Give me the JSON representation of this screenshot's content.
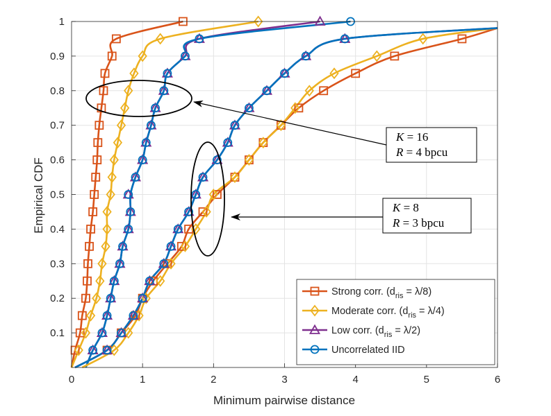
{
  "chart_data": {
    "type": "line",
    "title": "",
    "xlabel": "Minimum pairwise distance",
    "ylabel": "Empirical CDF",
    "xlim": [
      0,
      6
    ],
    "ylim": [
      0,
      1
    ],
    "x_ticks": [
      "0",
      "1",
      "2",
      "3",
      "4",
      "5",
      "6"
    ],
    "y_ticks": [
      "0.1",
      "0.2",
      "0.3",
      "0.4",
      "0.5",
      "0.6",
      "0.7",
      "0.8",
      "0.9",
      "1"
    ],
    "grid": true,
    "legend_position": "bottom-right",
    "series": [
      {
        "name": "Strong corr. (d_ris = λ/8)",
        "legend_label": {
          "prefix": "Strong corr. (d",
          "sub": "ris",
          "suffix": " = λ/8)"
        },
        "color": "#D95319",
        "marker": "square",
        "group": "K=16",
        "cdf_mean": 0.42,
        "cdf_std": 0.13,
        "marker_points": [
          [
            0.05,
            0.05
          ],
          [
            0.12,
            0.1
          ],
          [
            0.15,
            0.15
          ],
          [
            0.2,
            0.2
          ],
          [
            0.22,
            0.25
          ],
          [
            0.23,
            0.3
          ],
          [
            0.25,
            0.35
          ],
          [
            0.27,
            0.4
          ],
          [
            0.3,
            0.45
          ],
          [
            0.32,
            0.5
          ],
          [
            0.34,
            0.55
          ],
          [
            0.36,
            0.6
          ],
          [
            0.37,
            0.65
          ],
          [
            0.39,
            0.7
          ],
          [
            0.42,
            0.75
          ],
          [
            0.45,
            0.8
          ],
          [
            0.47,
            0.85
          ],
          [
            0.57,
            0.9
          ],
          [
            0.63,
            0.95
          ],
          [
            1.57,
            1.0
          ]
        ]
      },
      {
        "name": "Moderate corr. (d_ris = λ/4)",
        "legend_label": {
          "prefix": "Moderate corr. (d",
          "sub": "ris",
          "suffix": " = λ/4)"
        },
        "color": "#EDB120",
        "marker": "diamond",
        "group": "K=16",
        "cdf_mean": 0.63,
        "cdf_std": 0.2,
        "marker_points": [
          [
            0.1,
            0.05
          ],
          [
            0.2,
            0.1
          ],
          [
            0.27,
            0.15
          ],
          [
            0.35,
            0.2
          ],
          [
            0.4,
            0.25
          ],
          [
            0.43,
            0.3
          ],
          [
            0.48,
            0.35
          ],
          [
            0.5,
            0.4
          ],
          [
            0.5,
            0.45
          ],
          [
            0.55,
            0.5
          ],
          [
            0.57,
            0.55
          ],
          [
            0.6,
            0.6
          ],
          [
            0.65,
            0.65
          ],
          [
            0.7,
            0.7
          ],
          [
            0.75,
            0.75
          ],
          [
            0.8,
            0.8
          ],
          [
            0.88,
            0.85
          ],
          [
            1.0,
            0.9
          ],
          [
            1.25,
            0.95
          ],
          [
            2.63,
            1.0
          ]
        ]
      },
      {
        "name": "Low corr. (d_ris = λ/2)",
        "legend_label": {
          "prefix": "Low corr. (d",
          "sub": "ris",
          "suffix": " = λ/2)"
        },
        "color": "#7E2F8E",
        "marker": "triangle",
        "group": "K=16",
        "cdf_mean": 1.0,
        "cdf_std": 0.32,
        "marker_points": [
          [
            0.3,
            0.05
          ],
          [
            0.43,
            0.1
          ],
          [
            0.5,
            0.15
          ],
          [
            0.55,
            0.2
          ],
          [
            0.6,
            0.25
          ],
          [
            0.68,
            0.3
          ],
          [
            0.72,
            0.35
          ],
          [
            0.8,
            0.4
          ],
          [
            0.83,
            0.45
          ],
          [
            0.8,
            0.5
          ],
          [
            0.9,
            0.55
          ],
          [
            1.0,
            0.6
          ],
          [
            1.05,
            0.65
          ],
          [
            1.12,
            0.7
          ],
          [
            1.18,
            0.75
          ],
          [
            1.3,
            0.8
          ],
          [
            1.35,
            0.85
          ],
          [
            1.6,
            0.9
          ],
          [
            1.8,
            0.95
          ],
          [
            3.5,
            1.0
          ]
        ]
      },
      {
        "name": "Uncorrelated IID",
        "legend_label": {
          "prefix": "Uncorrelated IID",
          "sub": "",
          "suffix": ""
        },
        "color": "#0072BD",
        "marker": "circle",
        "group": "K=16",
        "cdf_mean": 1.0,
        "cdf_std": 0.32,
        "marker_points": [
          [
            0.3,
            0.05
          ],
          [
            0.43,
            0.1
          ],
          [
            0.5,
            0.15
          ],
          [
            0.55,
            0.2
          ],
          [
            0.6,
            0.25
          ],
          [
            0.68,
            0.3
          ],
          [
            0.72,
            0.35
          ],
          [
            0.8,
            0.4
          ],
          [
            0.83,
            0.45
          ],
          [
            0.8,
            0.5
          ],
          [
            0.9,
            0.55
          ],
          [
            1.0,
            0.6
          ],
          [
            1.05,
            0.65
          ],
          [
            1.12,
            0.7
          ],
          [
            1.18,
            0.75
          ],
          [
            1.3,
            0.8
          ],
          [
            1.35,
            0.85
          ],
          [
            1.6,
            0.9
          ],
          [
            1.8,
            0.95
          ],
          [
            3.93,
            1.0
          ]
        ]
      },
      {
        "name": "Strong corr. (d_ris = λ/8)",
        "color": "#D95319",
        "marker": "square",
        "group": "K=8",
        "cdf_mean": 2.6,
        "cdf_std": 1.2,
        "cdf_skew": "right",
        "x_max": 6,
        "marker_points": [
          [
            0.5,
            0.05
          ],
          [
            0.7,
            0.1
          ],
          [
            0.9,
            0.15
          ],
          [
            1.0,
            0.2
          ],
          [
            1.15,
            0.25
          ],
          [
            1.35,
            0.3
          ],
          [
            1.55,
            0.35
          ],
          [
            1.65,
            0.4
          ],
          [
            1.85,
            0.45
          ],
          [
            2.05,
            0.5
          ],
          [
            2.3,
            0.55
          ],
          [
            2.5,
            0.6
          ],
          [
            2.7,
            0.65
          ],
          [
            2.95,
            0.7
          ],
          [
            3.2,
            0.75
          ],
          [
            3.55,
            0.8
          ],
          [
            4.0,
            0.85
          ],
          [
            4.55,
            0.9
          ],
          [
            5.5,
            0.95
          ]
        ]
      },
      {
        "name": "Moderate corr. (d_ris = λ/4)",
        "color": "#EDB120",
        "marker": "diamond",
        "group": "K=8",
        "cdf_mean": 2.5,
        "cdf_std": 1.05,
        "cdf_skew": "right",
        "x_max": 6,
        "marker_points": [
          [
            0.6,
            0.05
          ],
          [
            0.8,
            0.1
          ],
          [
            0.95,
            0.15
          ],
          [
            1.05,
            0.2
          ],
          [
            1.25,
            0.25
          ],
          [
            1.4,
            0.3
          ],
          [
            1.6,
            0.35
          ],
          [
            1.75,
            0.4
          ],
          [
            1.9,
            0.45
          ],
          [
            2.0,
            0.5
          ],
          [
            2.3,
            0.55
          ],
          [
            2.5,
            0.6
          ],
          [
            2.7,
            0.65
          ],
          [
            2.95,
            0.7
          ],
          [
            3.15,
            0.75
          ],
          [
            3.35,
            0.8
          ],
          [
            3.7,
            0.85
          ],
          [
            4.3,
            0.9
          ],
          [
            4.95,
            0.95
          ]
        ]
      },
      {
        "name": "Low corr. (d_ris = λ/2)",
        "color": "#7E2F8E",
        "marker": "triangle",
        "group": "K=8",
        "cdf_mean": 2.0,
        "cdf_std": 0.7,
        "x_max": 6,
        "marker_points": [
          [
            0.5,
            0.05
          ],
          [
            0.7,
            0.1
          ],
          [
            0.87,
            0.15
          ],
          [
            1.0,
            0.2
          ],
          [
            1.1,
            0.25
          ],
          [
            1.3,
            0.3
          ],
          [
            1.4,
            0.35
          ],
          [
            1.5,
            0.4
          ],
          [
            1.65,
            0.45
          ],
          [
            1.75,
            0.5
          ],
          [
            1.85,
            0.55
          ],
          [
            2.05,
            0.6
          ],
          [
            2.2,
            0.65
          ],
          [
            2.3,
            0.7
          ],
          [
            2.5,
            0.75
          ],
          [
            2.75,
            0.8
          ],
          [
            3.0,
            0.85
          ],
          [
            3.3,
            0.9
          ],
          [
            3.85,
            0.95
          ]
        ]
      },
      {
        "name": "Uncorrelated IID",
        "color": "#0072BD",
        "marker": "circle",
        "group": "K=8",
        "cdf_mean": 2.0,
        "cdf_std": 0.7,
        "x_max": 6,
        "marker_points": [
          [
            0.5,
            0.05
          ],
          [
            0.7,
            0.1
          ],
          [
            0.87,
            0.15
          ],
          [
            1.0,
            0.2
          ],
          [
            1.1,
            0.25
          ],
          [
            1.3,
            0.3
          ],
          [
            1.4,
            0.35
          ],
          [
            1.5,
            0.4
          ],
          [
            1.65,
            0.45
          ],
          [
            1.75,
            0.5
          ],
          [
            1.85,
            0.55
          ],
          [
            2.05,
            0.6
          ],
          [
            2.2,
            0.65
          ],
          [
            2.3,
            0.7
          ],
          [
            2.5,
            0.75
          ],
          [
            2.75,
            0.8
          ],
          [
            3.0,
            0.85
          ],
          [
            3.3,
            0.9
          ],
          [
            3.85,
            0.95
          ]
        ]
      }
    ],
    "annotations": [
      {
        "id": "k16",
        "line1": {
          "var": "K",
          "eq": " = 16"
        },
        "line2": {
          "var": "R",
          "eq": " = 4 bpcu"
        },
        "ellipse_center": [
          0.95,
          0.8
        ],
        "arrow_target": [
          1.75,
          0.8
        ]
      },
      {
        "id": "k8",
        "line1": {
          "var": "K",
          "eq": " = 8"
        },
        "line2": {
          "var": "R",
          "eq": " = 3 bpcu"
        },
        "ellipse_center": [
          1.95,
          0.47
        ],
        "arrow_target": [
          2.2,
          0.44
        ]
      }
    ]
  }
}
